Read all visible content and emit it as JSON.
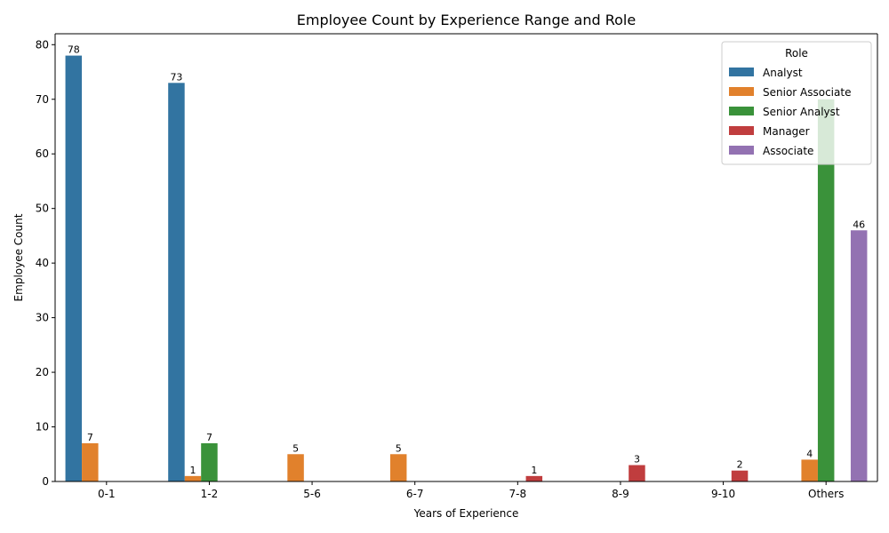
{
  "chart_data": {
    "type": "bar",
    "title": "Employee Count by Experience Range and Role",
    "xlabel": "Years of Experience",
    "ylabel": "Employee Count",
    "categories": [
      "0-1",
      "1-2",
      "5-6",
      "6-7",
      "7-8",
      "8-9",
      "9-10",
      "Others"
    ],
    "ylim": [
      0,
      82
    ],
    "yticks": [
      0,
      10,
      20,
      30,
      40,
      50,
      60,
      70,
      80
    ],
    "grid": false,
    "legend": {
      "title": "Role",
      "placement": "top-right"
    },
    "series": [
      {
        "name": "Analyst",
        "color": "#3274a1",
        "values": [
          78,
          null,
          null,
          null,
          null,
          null,
          null,
          null
        ]
      },
      {
        "name": "Senior Associate",
        "color": "#e1812c",
        "values": [
          7,
          1,
          5,
          5,
          null,
          null,
          null,
          4
        ]
      },
      {
        "name": "Senior Analyst",
        "color": "#3a923a",
        "values": [
          null,
          7,
          null,
          null,
          null,
          null,
          null,
          70
        ]
      },
      {
        "name": "Manager",
        "color": "#c03d3e",
        "values": [
          null,
          null,
          null,
          null,
          1,
          3,
          2,
          null
        ]
      },
      {
        "name": "Associate",
        "color": "#9372b2",
        "values": [
          null,
          null,
          null,
          null,
          null,
          null,
          null,
          46
        ]
      }
    ],
    "bar_labels": [
      {
        "series": 0,
        "category": 0,
        "text": "78"
      },
      {
        "series": 1,
        "category": 0,
        "text": "7"
      },
      {
        "series": 0,
        "category": 1,
        "text": "73"
      },
      {
        "series": 1,
        "category": 1,
        "text": "1"
      },
      {
        "series": 2,
        "category": 1,
        "text": "7"
      },
      {
        "series": 1,
        "category": 2,
        "text": "5"
      },
      {
        "series": 1,
        "category": 3,
        "text": "5"
      },
      {
        "series": 3,
        "category": 4,
        "text": "1"
      },
      {
        "series": 3,
        "category": 5,
        "text": "3"
      },
      {
        "series": 3,
        "category": 6,
        "text": "2"
      },
      {
        "series": 1,
        "category": 7,
        "text": "4"
      },
      {
        "series": 4,
        "category": 7,
        "text": "46"
      }
    ],
    "extra_values": [
      {
        "series": 0,
        "category": 1,
        "value": 73
      }
    ]
  }
}
